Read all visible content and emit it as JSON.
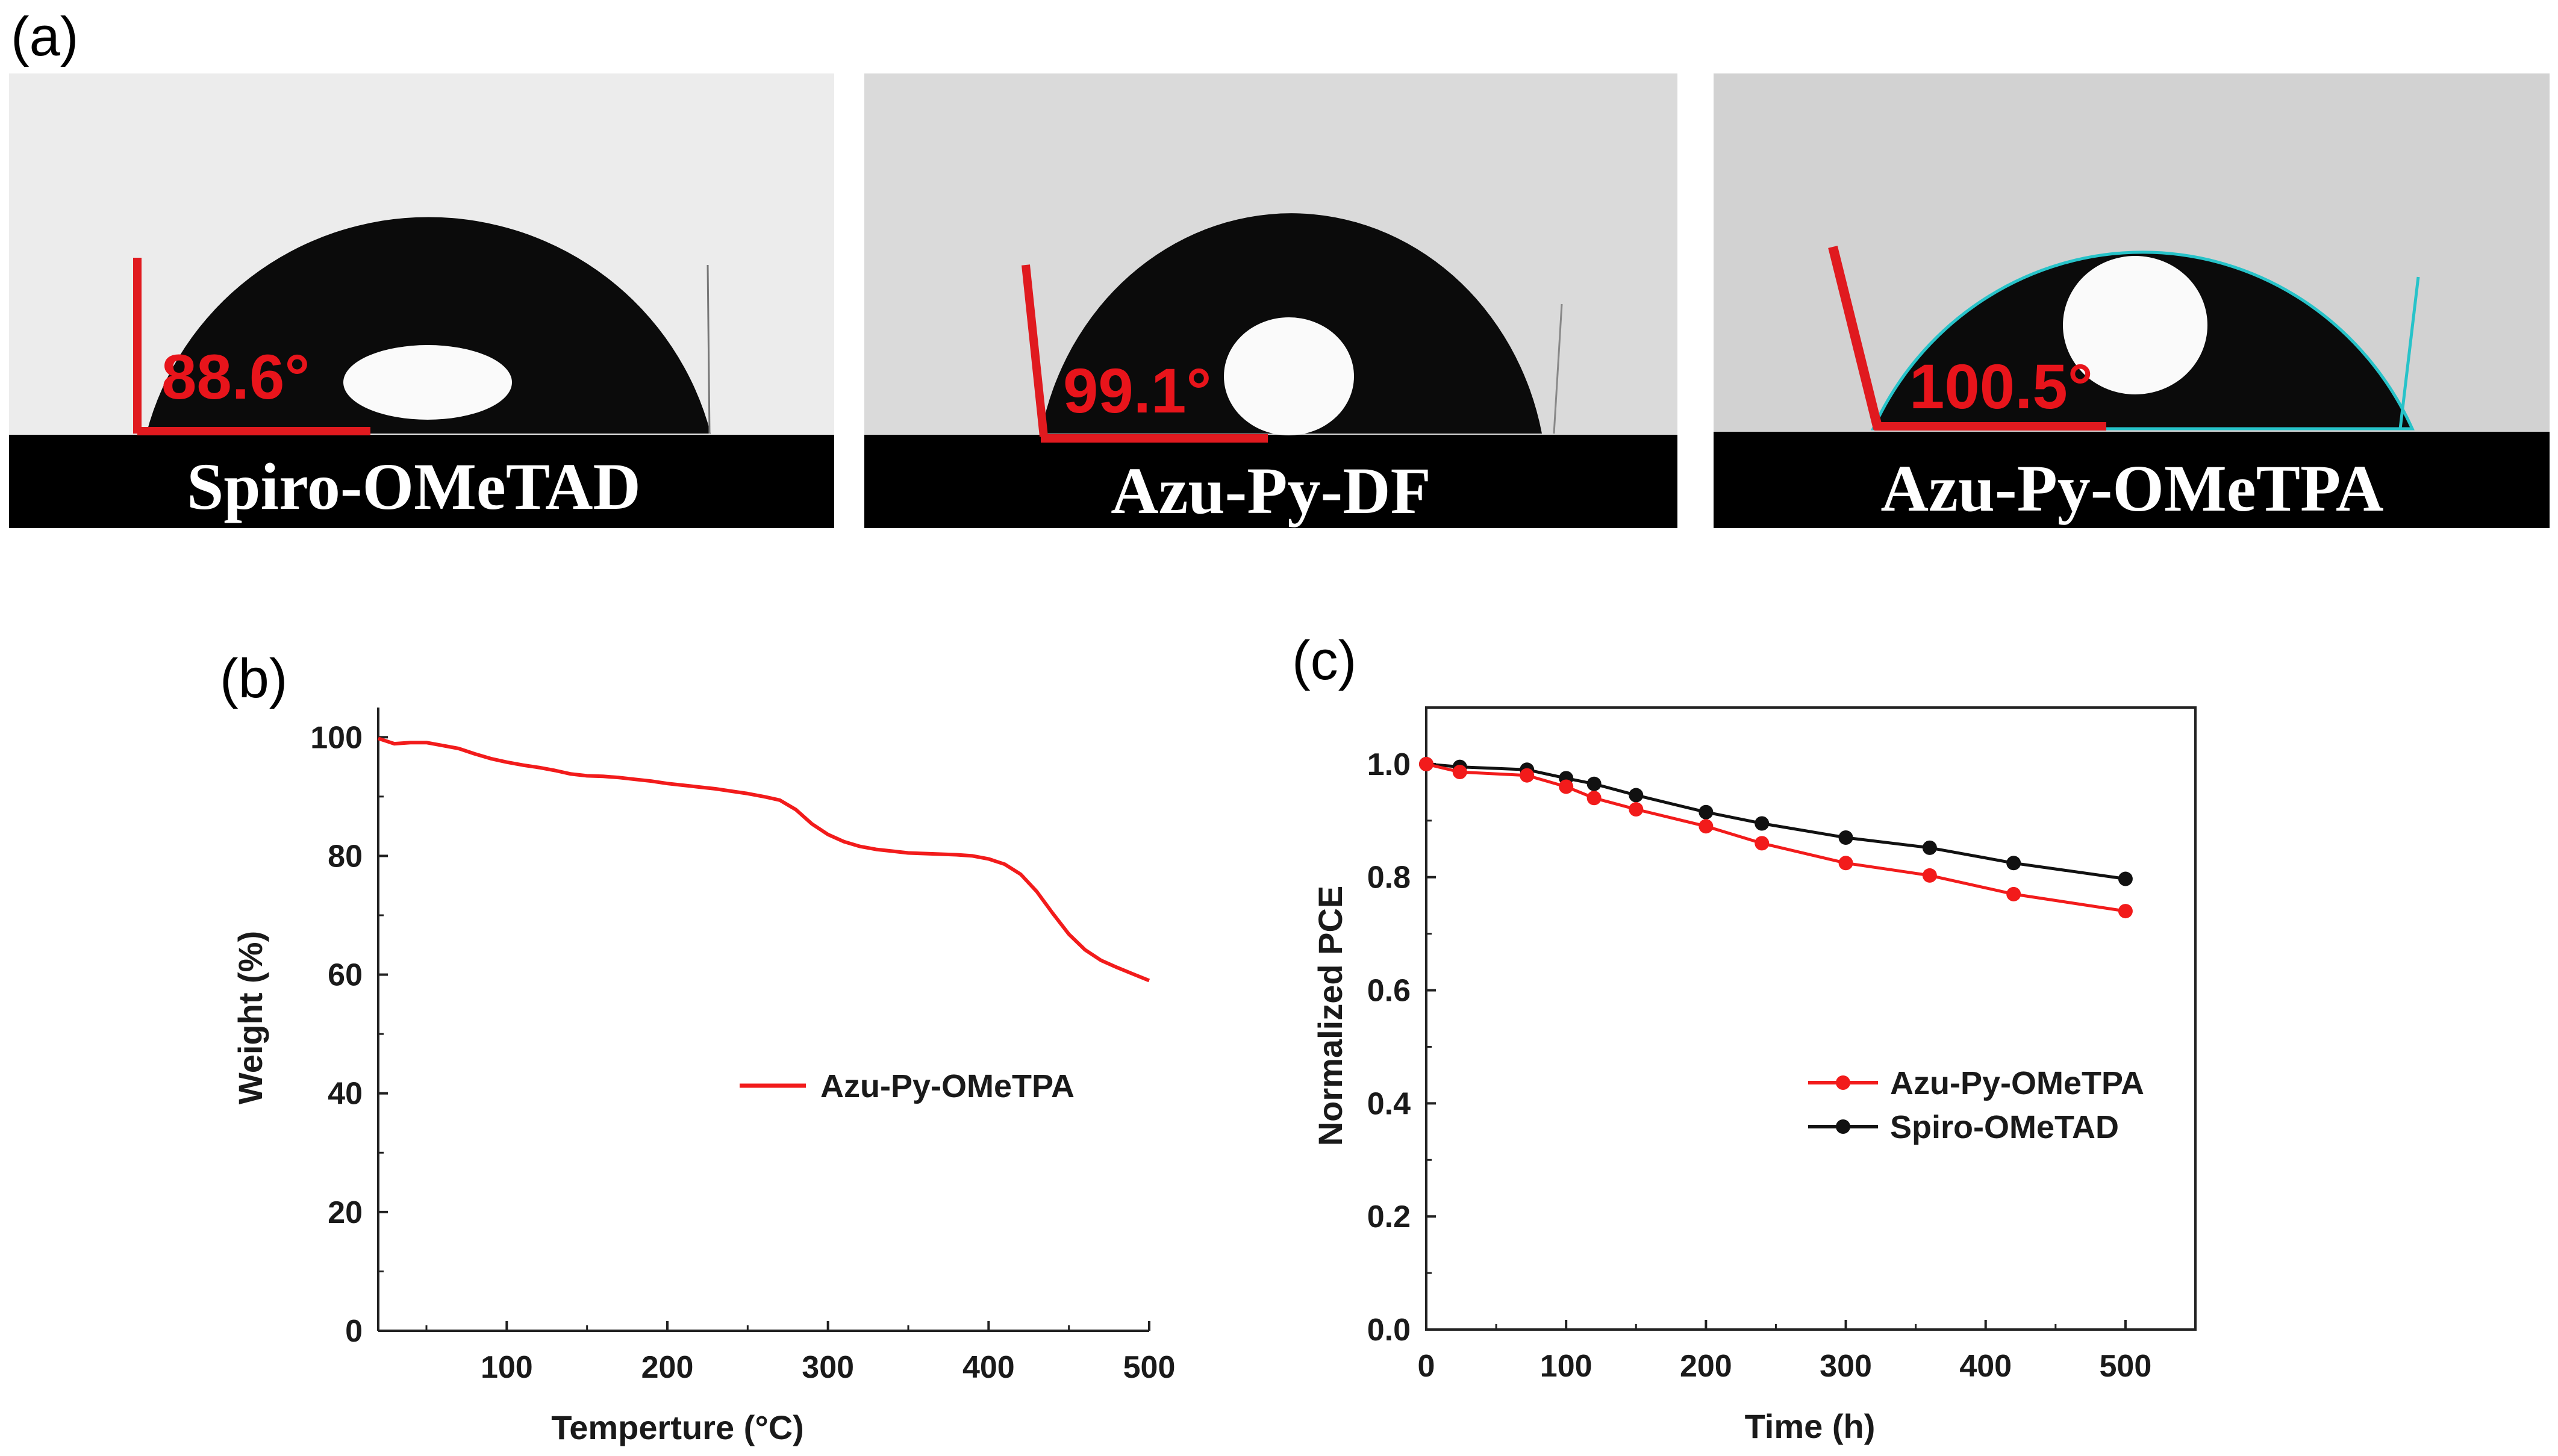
{
  "panel_a": {
    "letter": "(a)",
    "images": [
      {
        "caption": "Spiro-OMeTAD",
        "angle": "88.6°",
        "angle_value": 88.6,
        "background": "#ececec"
      },
      {
        "caption": "Azu-Py-DF",
        "angle": "99.1°",
        "angle_value": 99.1,
        "background": "#dadada"
      },
      {
        "caption": "Azu-Py-OMeTPA",
        "angle": "100.5°",
        "angle_value": 100.5,
        "background": "#d2d2d2"
      }
    ]
  },
  "chart_data": [
    {
      "id": "b",
      "letter": "(b)",
      "type": "line",
      "title": "",
      "xlabel": "Temperture (°C)",
      "ylabel": "Weight (%)",
      "xlim": [
        20,
        500
      ],
      "ylim": [
        0,
        105
      ],
      "xticks": [
        "100",
        "200",
        "300",
        "400",
        "500"
      ],
      "xtick_values": [
        100,
        200,
        300,
        400,
        500
      ],
      "yticks": [
        "0",
        "20",
        "40",
        "60",
        "80",
        "100"
      ],
      "ytick_values": [
        0,
        20,
        40,
        60,
        80,
        100
      ],
      "legend_position": "center-right",
      "series": [
        {
          "name": "Azu-Py-OMeTPA",
          "color": "#f21b1b",
          "x": [
            20,
            30,
            40,
            50,
            60,
            70,
            80,
            90,
            100,
            110,
            120,
            130,
            140,
            150,
            160,
            170,
            180,
            190,
            200,
            210,
            220,
            230,
            240,
            250,
            260,
            270,
            280,
            290,
            300,
            310,
            320,
            330,
            340,
            350,
            360,
            370,
            380,
            390,
            400,
            410,
            420,
            430,
            440,
            450,
            460,
            470,
            480,
            490,
            500
          ],
          "y": [
            99.8,
            98.9,
            99.1,
            99.1,
            98.6,
            98.1,
            97.2,
            96.4,
            95.8,
            95.3,
            94.9,
            94.4,
            93.8,
            93.5,
            93.4,
            93.2,
            92.9,
            92.6,
            92.2,
            91.9,
            91.6,
            91.3,
            90.9,
            90.5,
            90.0,
            89.4,
            87.8,
            85.4,
            83.6,
            82.4,
            81.6,
            81.1,
            80.8,
            80.5,
            80.4,
            80.3,
            80.2,
            80.0,
            79.5,
            78.6,
            76.9,
            74.0,
            70.3,
            66.8,
            64.2,
            62.4,
            61.2,
            60.1,
            59.0
          ]
        }
      ]
    },
    {
      "id": "c",
      "letter": "(c)",
      "type": "line",
      "title": "",
      "xlabel": "Time (h)",
      "ylabel": "Normalized PCE",
      "xlim": [
        0,
        550
      ],
      "ylim": [
        0,
        1.1
      ],
      "xticks": [
        "0",
        "100",
        "200",
        "300",
        "400",
        "500"
      ],
      "xtick_values": [
        0,
        100,
        200,
        300,
        400,
        500
      ],
      "yticks": [
        "0.0",
        "0.2",
        "0.4",
        "0.6",
        "0.8",
        "1.0"
      ],
      "ytick_values": [
        0.0,
        0.2,
        0.4,
        0.6,
        0.8,
        1.0
      ],
      "legend_position": "lower-right",
      "series": [
        {
          "name": "Azu-Py-OMeTPA",
          "color": "#f21b1b",
          "x": [
            0,
            24,
            72,
            100,
            120,
            150,
            200,
            240,
            300,
            360,
            420,
            500
          ],
          "y": [
            1.0,
            0.986,
            0.98,
            0.96,
            0.94,
            0.92,
            0.89,
            0.86,
            0.825,
            0.803,
            0.77,
            0.74
          ]
        },
        {
          "name": "Spiro-OMeTAD",
          "color": "#111111",
          "x": [
            0,
            24,
            72,
            100,
            120,
            150,
            200,
            240,
            300,
            360,
            420,
            500
          ],
          "y": [
            1.0,
            0.995,
            0.99,
            0.975,
            0.965,
            0.945,
            0.915,
            0.895,
            0.87,
            0.852,
            0.825,
            0.797
          ]
        }
      ]
    }
  ]
}
